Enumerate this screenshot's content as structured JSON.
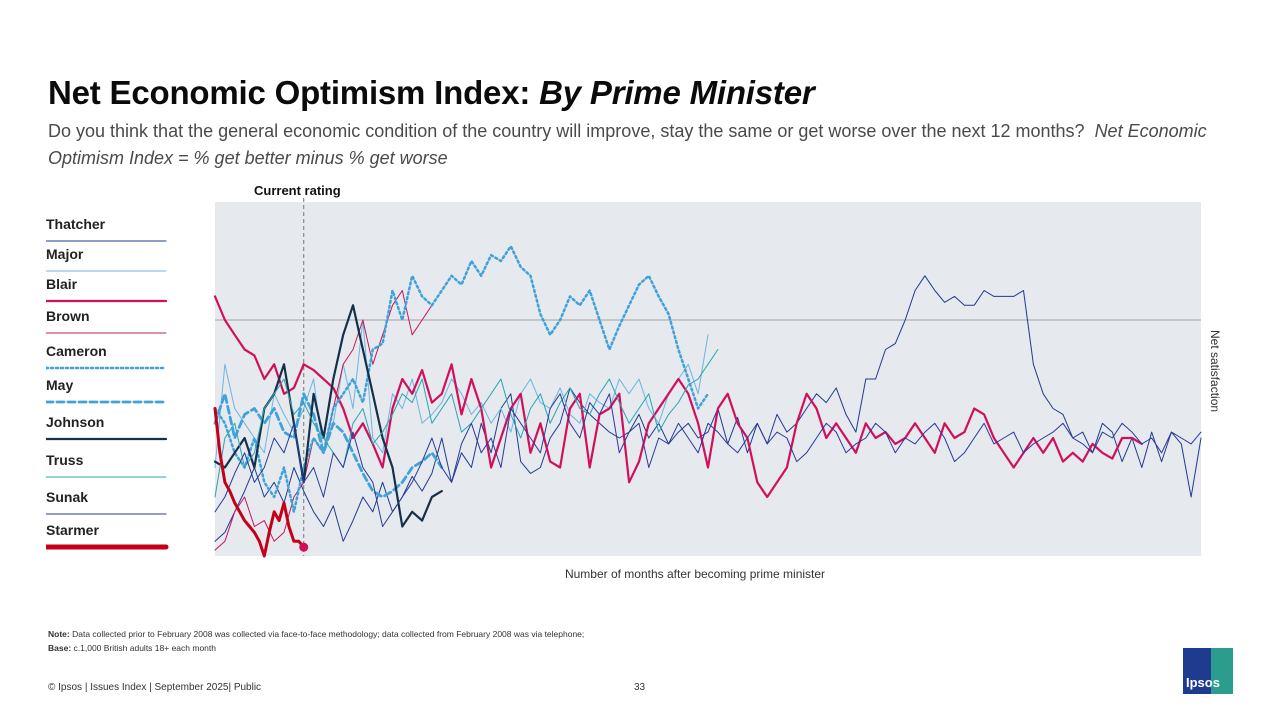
{
  "title": {
    "main": "Net Economic Optimism Index:",
    "italic": "By Prime Minister"
  },
  "subtitle": {
    "text": "Do you think that the general economic condition of the country will improve, stay the same or get worse over the next 12 months?",
    "italic": "Net Economic Optimism Index = % get better minus % get worse"
  },
  "annotation": {
    "current_rating": "Current rating"
  },
  "legend": [
    {
      "name": "Thatcher",
      "color": "#1f3b8f",
      "style": "solid-thin"
    },
    {
      "name": "Major",
      "color": "#6cb6e0",
      "style": "solid-thin"
    },
    {
      "name": "Blair",
      "color": "#d10f5b",
      "style": "solid-thick"
    },
    {
      "name": "Brown",
      "color": "#c2185b",
      "style": "solid-thin"
    },
    {
      "name": "Cameron",
      "color": "#3fa2d8",
      "style": "dotted"
    },
    {
      "name": "May",
      "color": "#3fa2d8",
      "style": "dashed"
    },
    {
      "name": "Johnson",
      "color": "#15304a",
      "style": "solid-thick"
    },
    {
      "name": "Truss",
      "color": "#2aa5b0",
      "style": "solid-thin"
    },
    {
      "name": "Sunak",
      "color": "#2b3a9b",
      "style": "solid-thin"
    },
    {
      "name": "Starmer",
      "color": "#c40019",
      "style": "solid-heavy"
    }
  ],
  "chart_data": {
    "type": "line",
    "xlabel": "Number of months after becoming prime minister",
    "ylabel": "Net satisfaction",
    "xlim": [
      0,
      200
    ],
    "ylim": [
      -60,
      60
    ],
    "current_rating_month": 18,
    "grid": false,
    "reference_line_y": 0,
    "series": [
      {
        "name": "Thatcher",
        "x": [
          0,
          2,
          4,
          6,
          8,
          10,
          12,
          14,
          16,
          18,
          20,
          22,
          24,
          26,
          28,
          30,
          32,
          34,
          36,
          38,
          40,
          42,
          44,
          46,
          48,
          50,
          52,
          54,
          56,
          58,
          60,
          62,
          64,
          66,
          68,
          70,
          72,
          74,
          76,
          78,
          80,
          82,
          84,
          86,
          88,
          90,
          92,
          94,
          96,
          98,
          100,
          102,
          104,
          106,
          108,
          110,
          112,
          114,
          116,
          118,
          120,
          122,
          124,
          126,
          128,
          130,
          132,
          134,
          136,
          138,
          140,
          142,
          144,
          146,
          148,
          150,
          152,
          154,
          156,
          158,
          160,
          162,
          164,
          166,
          168,
          170,
          172,
          174,
          176,
          178,
          180,
          182,
          184,
          186,
          188,
          190,
          192,
          194,
          196,
          198,
          200
        ],
        "values": [
          -55,
          -52,
          -45,
          -38,
          -30,
          -40,
          -35,
          -42,
          -30,
          -38,
          -45,
          -50,
          -43,
          -55,
          -48,
          -40,
          -45,
          -35,
          -45,
          -40,
          -33,
          -38,
          -32,
          -20,
          -35,
          -25,
          -30,
          -15,
          -25,
          -10,
          -5,
          -28,
          -32,
          -30,
          -20,
          -15,
          -3,
          -8,
          -12,
          -15,
          -18,
          -20,
          -18,
          -12,
          -20,
          -15,
          -22,
          -18,
          -15,
          -20,
          -18,
          -10,
          -22,
          -13,
          -25,
          -15,
          -22,
          -12,
          -18,
          -15,
          -10,
          -5,
          -8,
          -3,
          -12,
          -18,
          0,
          0,
          10,
          12,
          20,
          30,
          35,
          30,
          26,
          28,
          25,
          25,
          30,
          28,
          28,
          28,
          30,
          5,
          -5,
          -10,
          -12,
          -20,
          -18,
          -25,
          -15,
          -18,
          -28,
          -20,
          -30,
          -18,
          -28,
          -18,
          -22,
          -40,
          -20
        ]
      },
      {
        "name": "Major",
        "x": [
          0,
          2,
          4,
          6,
          8,
          10,
          12,
          14,
          16,
          18,
          20,
          22,
          24,
          26,
          28,
          30,
          32,
          34,
          36,
          38,
          40,
          42,
          44,
          46,
          48,
          50,
          52,
          54,
          56,
          58,
          60,
          62,
          64,
          66,
          68,
          70,
          72,
          74,
          76,
          78,
          80,
          82,
          84,
          86,
          88,
          90,
          92,
          94,
          96,
          98,
          100
        ],
        "values": [
          -30,
          5,
          -10,
          -15,
          -20,
          -25,
          -5,
          -12,
          -18,
          -10,
          0,
          -25,
          -15,
          5,
          -10,
          20,
          -20,
          -25,
          -5,
          -10,
          0,
          -15,
          -12,
          -8,
          0,
          -5,
          -12,
          -8,
          -15,
          -10,
          -18,
          -5,
          0,
          -8,
          -10,
          -3,
          -12,
          -15,
          -5,
          -8,
          -10,
          0,
          -5,
          0,
          -10,
          -15,
          -5,
          0,
          5,
          -5,
          15
        ]
      },
      {
        "name": "Blair",
        "x": [
          0,
          2,
          4,
          6,
          8,
          10,
          12,
          14,
          16,
          18,
          20,
          22,
          24,
          26,
          28,
          30,
          32,
          34,
          36,
          38,
          40,
          42,
          44,
          46,
          48,
          50,
          52,
          54,
          56,
          58,
          60,
          62,
          64,
          66,
          68,
          70,
          72,
          74,
          76,
          78,
          80,
          82,
          84,
          86,
          88,
          90,
          92,
          94,
          96,
          98,
          100,
          102,
          104,
          106,
          108,
          110,
          112,
          114,
          116,
          118,
          120,
          122,
          124,
          126,
          128,
          130,
          132,
          134,
          136,
          138,
          140,
          142,
          144,
          146,
          148,
          150,
          152,
          154,
          156,
          158,
          160,
          162,
          164,
          166,
          168,
          170,
          172,
          174,
          176,
          178,
          180,
          182,
          184,
          186,
          188
        ],
        "values": [
          28,
          20,
          15,
          10,
          8,
          0,
          5,
          -5,
          -3,
          5,
          3,
          0,
          -3,
          -10,
          -20,
          -15,
          -22,
          -30,
          -10,
          0,
          -5,
          3,
          -8,
          -5,
          5,
          -12,
          0,
          -10,
          -30,
          -20,
          -10,
          -5,
          -25,
          -15,
          -28,
          -30,
          -10,
          -5,
          -30,
          -12,
          -10,
          -5,
          -35,
          -28,
          -15,
          -10,
          -5,
          0,
          -5,
          -15,
          -30,
          -10,
          -5,
          -15,
          -20,
          -35,
          -40,
          -35,
          -30,
          -15,
          -5,
          -10,
          -20,
          -15,
          -20,
          -25,
          -15,
          -20,
          -18,
          -22,
          -20,
          -15,
          -20,
          -25,
          -15,
          -20,
          -18,
          -10,
          -12,
          -20,
          -25,
          -30,
          -25,
          -20,
          -25,
          -20,
          -28,
          -25,
          -28,
          -22,
          -25,
          -27,
          -20,
          -20,
          -22
        ]
      },
      {
        "name": "Brown",
        "x": [
          0,
          2,
          4,
          6,
          8,
          10,
          12,
          14,
          16,
          18,
          20,
          22,
          24,
          26,
          28,
          30,
          32,
          34,
          36,
          38,
          40,
          42,
          44
        ],
        "values": [
          -58,
          -55,
          -45,
          -40,
          -50,
          -48,
          -55,
          -52,
          -40,
          -35,
          -20,
          -25,
          -10,
          5,
          10,
          20,
          5,
          15,
          25,
          30,
          15,
          20,
          25
        ]
      },
      {
        "name": "Cameron",
        "x": [
          0,
          2,
          4,
          6,
          8,
          10,
          12,
          14,
          16,
          18,
          20,
          22,
          24,
          26,
          28,
          30,
          32,
          34,
          36,
          38,
          40,
          42,
          44,
          46,
          48,
          50,
          52,
          54,
          56,
          58,
          60,
          62,
          64,
          66,
          68,
          70,
          72,
          74,
          76,
          78,
          80,
          82,
          84,
          86,
          88,
          90,
          92,
          94,
          96,
          98,
          100
        ],
        "values": [
          -10,
          -15,
          -25,
          -30,
          -20,
          -35,
          -40,
          -30,
          -45,
          -30,
          -20,
          -25,
          -10,
          -5,
          0,
          -8,
          10,
          12,
          30,
          20,
          35,
          28,
          25,
          30,
          35,
          32,
          40,
          35,
          42,
          40,
          45,
          38,
          35,
          22,
          15,
          20,
          28,
          25,
          30,
          20,
          10,
          18,
          25,
          32,
          35,
          28,
          22,
          10,
          0,
          -10,
          -5
        ]
      },
      {
        "name": "May",
        "x": [
          0,
          2,
          4,
          6,
          8,
          10,
          12,
          14,
          16,
          18,
          20,
          22,
          24,
          26,
          28,
          30,
          32,
          34,
          36,
          38,
          40,
          42,
          44,
          46
        ],
        "values": [
          -15,
          -5,
          -20,
          -12,
          -10,
          -15,
          -10,
          -18,
          -20,
          -5,
          -12,
          -25,
          -15,
          -18,
          -25,
          -32,
          -38,
          -40,
          -38,
          -35,
          -30,
          -28,
          -25,
          -30
        ]
      },
      {
        "name": "Johnson",
        "x": [
          0,
          2,
          4,
          6,
          8,
          10,
          12,
          14,
          16,
          18,
          20,
          22,
          24,
          26,
          28,
          30,
          32,
          34,
          36,
          38,
          40,
          42,
          44,
          46
        ],
        "values": [
          -28,
          -30,
          -25,
          -20,
          -30,
          -10,
          -5,
          5,
          -15,
          -35,
          -5,
          -20,
          0,
          15,
          25,
          10,
          -5,
          -20,
          -30,
          -50,
          -45,
          -48,
          -40,
          -38
        ]
      },
      {
        "name": "Truss",
        "x": [
          0,
          2,
          4,
          6,
          8,
          10,
          12,
          14,
          16,
          18,
          20,
          22,
          24,
          26,
          28,
          30,
          32,
          34,
          36,
          38,
          40,
          42,
          44,
          46,
          48,
          50,
          52,
          54,
          56,
          58,
          60,
          62,
          64,
          66,
          68,
          70,
          72,
          74,
          76,
          78,
          80,
          82,
          84,
          86,
          88,
          90,
          92,
          94,
          96,
          98,
          100,
          102
        ],
        "values": [
          -40,
          -20,
          -15,
          -30,
          -25,
          -10,
          -5,
          0,
          -12,
          -8,
          -15,
          -20,
          -25,
          -30,
          -15,
          -10,
          -22,
          -18,
          -12,
          -5,
          -8,
          0,
          -15,
          -10,
          -5,
          -18,
          -15,
          -10,
          -5,
          0,
          -12,
          -20,
          -10,
          -5,
          -15,
          -8,
          -3,
          -10,
          -12,
          -5,
          0,
          -8,
          -15,
          -10,
          -5,
          -18,
          -12,
          -8,
          -2,
          0,
          5,
          10
        ]
      },
      {
        "name": "Sunak",
        "x": [
          0,
          2,
          4,
          6,
          8,
          10,
          12,
          14,
          16,
          18,
          20,
          22,
          24,
          26,
          28,
          30,
          32,
          34,
          36,
          38,
          40,
          42,
          44,
          46,
          48,
          50,
          52,
          54,
          56,
          58,
          60,
          62,
          64,
          66,
          68,
          70,
          72,
          74,
          76,
          78,
          80,
          82,
          84,
          86,
          88,
          90,
          92,
          94,
          96,
          98,
          100,
          102,
          104,
          106,
          108,
          110,
          112,
          114,
          116,
          118,
          120,
          122,
          124,
          126,
          128,
          130,
          132,
          134,
          136,
          138,
          140,
          142,
          144,
          146,
          148,
          150,
          152,
          154,
          156,
          158,
          160,
          162,
          164,
          166,
          168,
          170,
          172,
          174,
          176,
          178,
          180,
          182,
          184,
          186,
          188,
          190,
          192,
          194,
          196,
          198,
          200
        ],
        "values": [
          -45,
          -40,
          -32,
          -25,
          -35,
          -30,
          -20,
          -25,
          -15,
          -35,
          -30,
          -40,
          -25,
          -30,
          -18,
          -30,
          -35,
          -50,
          -45,
          -40,
          -35,
          -28,
          -20,
          -30,
          -35,
          -22,
          -15,
          -25,
          -20,
          -30,
          -10,
          -15,
          -20,
          -25,
          -10,
          -5,
          -15,
          -20,
          -8,
          -12,
          -5,
          -25,
          -18,
          -15,
          -30,
          -20,
          -22,
          -15,
          -20,
          -25,
          -15,
          -18,
          -22,
          -25,
          -20,
          -15,
          -22,
          -18,
          -20,
          -28,
          -25,
          -20,
          -15,
          -18,
          -25,
          -22,
          -20,
          -15,
          -18,
          -25,
          -20,
          -22,
          -18,
          -15,
          -20,
          -28,
          -25,
          -20,
          -15,
          -22,
          -20,
          -18,
          -25,
          -22,
          -20,
          -18,
          -15,
          -20,
          -22,
          -25,
          -18,
          -20,
          -15,
          -18,
          -22,
          -20,
          -25,
          -18,
          -20,
          -22,
          -18
        ]
      },
      {
        "name": "Starmer",
        "x": [
          0,
          1,
          2,
          3,
          4,
          5,
          6,
          7,
          8,
          9,
          10,
          11,
          12,
          13,
          14,
          15,
          16,
          17,
          18
        ],
        "values": [
          -10,
          -25,
          -35,
          -38,
          -42,
          -45,
          -48,
          -50,
          -52,
          -55,
          -60,
          -52,
          -45,
          -48,
          -42,
          -50,
          -55,
          -55,
          -57
        ]
      }
    ]
  }
}
